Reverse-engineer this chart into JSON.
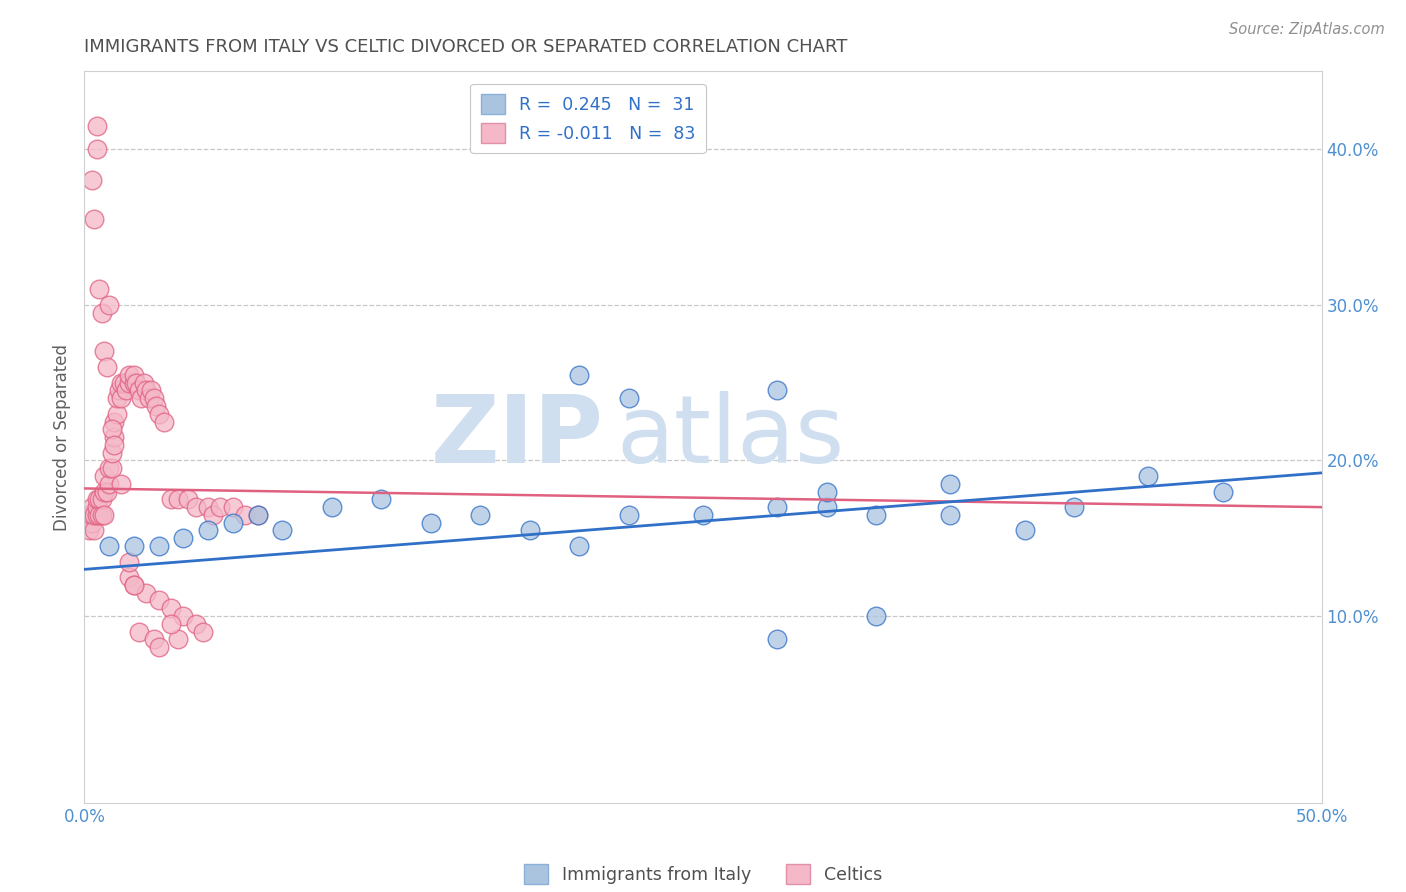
{
  "title": "IMMIGRANTS FROM ITALY VS CELTIC DIVORCED OR SEPARATED CORRELATION CHART",
  "ylabel": "Divorced or Separated",
  "source": "Source: ZipAtlas.com",
  "legend_label1": "Immigrants from Italy",
  "legend_label2": "Celtics",
  "legend_r1": "R =  0.245",
  "legend_n1": "N =  31",
  "legend_r2": "R = -0.011",
  "legend_n2": "N =  83",
  "watermark_zip": "ZIP",
  "watermark_atlas": "atlas",
  "xlim": [
    0.0,
    0.5
  ],
  "ylim": [
    -0.02,
    0.45
  ],
  "yticks": [
    0.1,
    0.2,
    0.3,
    0.4
  ],
  "ytick_labels": [
    "10.0%",
    "20.0%",
    "30.0%",
    "40.0%"
  ],
  "xticks": [
    0.0,
    0.1,
    0.2,
    0.3,
    0.4,
    0.5
  ],
  "xtick_labels": [
    "0.0%",
    "",
    "",
    "",
    "",
    "50.0%"
  ],
  "blue_scatter_x": [
    0.01,
    0.02,
    0.03,
    0.04,
    0.05,
    0.06,
    0.07,
    0.08,
    0.1,
    0.12,
    0.14,
    0.16,
    0.18,
    0.2,
    0.22,
    0.25,
    0.28,
    0.3,
    0.32,
    0.35,
    0.38,
    0.4,
    0.43,
    0.46,
    0.22,
    0.28,
    0.3,
    0.35,
    0.2,
    0.32,
    0.28
  ],
  "blue_scatter_y": [
    0.145,
    0.145,
    0.145,
    0.15,
    0.155,
    0.16,
    0.165,
    0.155,
    0.17,
    0.175,
    0.16,
    0.165,
    0.155,
    0.145,
    0.165,
    0.165,
    0.17,
    0.17,
    0.165,
    0.165,
    0.155,
    0.17,
    0.19,
    0.18,
    0.24,
    0.245,
    0.18,
    0.185,
    0.255,
    0.1,
    0.085
  ],
  "pink_scatter_x": [
    0.002,
    0.002,
    0.003,
    0.003,
    0.003,
    0.004,
    0.004,
    0.005,
    0.005,
    0.005,
    0.006,
    0.006,
    0.007,
    0.007,
    0.008,
    0.008,
    0.008,
    0.009,
    0.01,
    0.01,
    0.011,
    0.011,
    0.012,
    0.012,
    0.013,
    0.013,
    0.014,
    0.015,
    0.015,
    0.016,
    0.017,
    0.018,
    0.018,
    0.02,
    0.02,
    0.021,
    0.022,
    0.023,
    0.024,
    0.025,
    0.026,
    0.027,
    0.028,
    0.029,
    0.03,
    0.032,
    0.035,
    0.038,
    0.042,
    0.045,
    0.05,
    0.052,
    0.055,
    0.06,
    0.065,
    0.07,
    0.003,
    0.004,
    0.005,
    0.005,
    0.006,
    0.007,
    0.008,
    0.009,
    0.01,
    0.011,
    0.012,
    0.015,
    0.018,
    0.02,
    0.025,
    0.03,
    0.035,
    0.04,
    0.045,
    0.022,
    0.028,
    0.03,
    0.038,
    0.018,
    0.02,
    0.035,
    0.048
  ],
  "pink_scatter_y": [
    0.155,
    0.165,
    0.16,
    0.165,
    0.17,
    0.155,
    0.165,
    0.165,
    0.17,
    0.175,
    0.165,
    0.175,
    0.165,
    0.175,
    0.165,
    0.18,
    0.19,
    0.18,
    0.185,
    0.195,
    0.195,
    0.205,
    0.215,
    0.225,
    0.23,
    0.24,
    0.245,
    0.24,
    0.25,
    0.25,
    0.245,
    0.25,
    0.255,
    0.25,
    0.255,
    0.25,
    0.245,
    0.24,
    0.25,
    0.245,
    0.24,
    0.245,
    0.24,
    0.235,
    0.23,
    0.225,
    0.175,
    0.175,
    0.175,
    0.17,
    0.17,
    0.165,
    0.17,
    0.17,
    0.165,
    0.165,
    0.38,
    0.355,
    0.415,
    0.4,
    0.31,
    0.295,
    0.27,
    0.26,
    0.3,
    0.22,
    0.21,
    0.185,
    0.125,
    0.12,
    0.115,
    0.11,
    0.105,
    0.1,
    0.095,
    0.09,
    0.085,
    0.08,
    0.085,
    0.135,
    0.12,
    0.095,
    0.09
  ],
  "blue_color": "#aac4e0",
  "pink_color": "#f4b8c8",
  "blue_line_color": "#3070c8",
  "pink_line_color": "#e06080",
  "blue_line_x": [
    0.0,
    0.5
  ],
  "blue_line_y": [
    0.13,
    0.192
  ],
  "pink_line_x": [
    0.0,
    0.5
  ],
  "pink_line_y": [
    0.182,
    0.17
  ],
  "pink_line_style": "solid",
  "grid_color": "#c8c8c8",
  "title_color": "#505050",
  "axis_label_color": "#5090d0",
  "watermark_color": "#d0dff0",
  "background_color": "#ffffff"
}
